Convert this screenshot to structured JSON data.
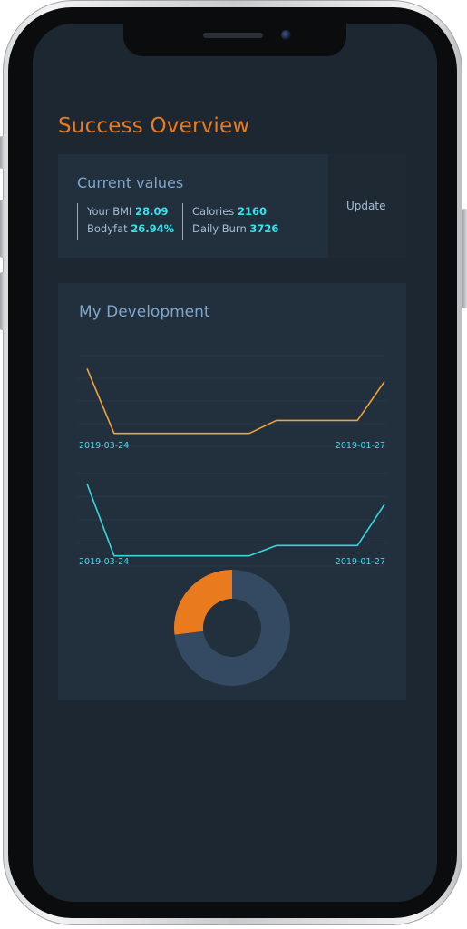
{
  "app": {
    "title": "Success Overview"
  },
  "current": {
    "heading": "Current values",
    "bmi_label": "Your BMI",
    "bmi_value": "28.09",
    "bodyfat_label": "Bodyfat",
    "bodyfat_value": "26.94%",
    "calories_label": "Calories",
    "calories_value": "2160",
    "burn_label": "Daily Burn",
    "burn_value": "3726",
    "update_label": "Update"
  },
  "development": {
    "heading": "My Development"
  },
  "colors": {
    "accent_orange": "#ea7a1e",
    "accent_cyan": "#35e3ee",
    "card_bg": "#222f3c",
    "screen_bg": "#1c2732",
    "donut_rest": "#344a62"
  },
  "chart_data": [
    {
      "type": "line",
      "color": "#f2a33a",
      "x_start_label": "2019-03-24",
      "x_end_label": "2019-01-27",
      "values": [
        30.5,
        28.0,
        28.0,
        28.0,
        28.0,
        28.0,
        28.0,
        28.5,
        28.5,
        28.5,
        28.5,
        30.0
      ],
      "ylim": [
        27.5,
        31
      ]
    },
    {
      "type": "line",
      "color": "#35d5df",
      "x_start_label": "2019-03-24",
      "x_end_label": "2019-01-27",
      "values": [
        30.0,
        26.5,
        26.5,
        26.5,
        26.5,
        26.5,
        26.5,
        27.0,
        27.0,
        27.0,
        27.0,
        29.0
      ],
      "ylim": [
        26,
        30.5
      ]
    },
    {
      "type": "pie",
      "donut": true,
      "slices": [
        {
          "value": 26.94,
          "color": "#ea7a1e"
        },
        {
          "value": 73.06,
          "color": "#344a62"
        }
      ]
    }
  ]
}
